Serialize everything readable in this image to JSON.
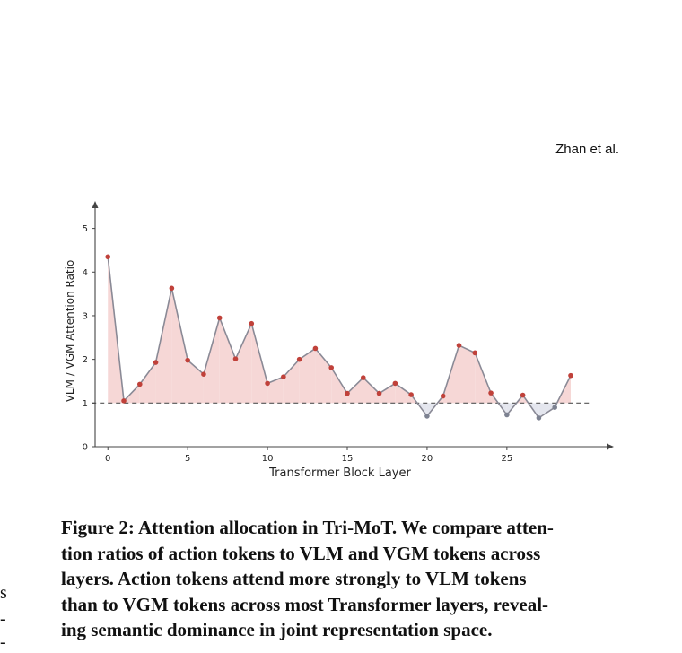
{
  "header": {
    "running_head": "Zhan et al."
  },
  "chart_data": {
    "type": "line",
    "xlabel": "Transformer Block Layer",
    "ylabel": "VLM / VGM Attention Ratio",
    "x": [
      0,
      1,
      2,
      3,
      4,
      5,
      6,
      7,
      8,
      9,
      10,
      11,
      12,
      13,
      14,
      15,
      16,
      17,
      18,
      19,
      20,
      21,
      22,
      23,
      24,
      25,
      26,
      27,
      28,
      29
    ],
    "values": [
      4.35,
      1.05,
      1.43,
      1.93,
      3.63,
      1.98,
      1.66,
      2.95,
      2.01,
      2.82,
      1.45,
      1.6,
      2.0,
      2.25,
      1.81,
      1.22,
      1.58,
      1.22,
      1.45,
      1.19,
      0.7,
      1.16,
      2.32,
      2.15,
      1.23,
      0.73,
      1.18,
      0.66,
      0.9,
      1.63
    ],
    "xlim": [
      -0.8,
      30.8
    ],
    "ylim": [
      0,
      5.3
    ],
    "xticks": [
      0,
      5,
      10,
      15,
      20,
      25
    ],
    "yticks": [
      0,
      1,
      2,
      3,
      4,
      5
    ],
    "reference_line": 1,
    "grid": false,
    "colors": {
      "line": "#8a8a96",
      "point_above": "#c0413a",
      "point_below": "#7d8291",
      "fill_above": "#f6d7d6",
      "fill_below": "#e4e6ee",
      "reference": "#555555",
      "axis": "#444444"
    }
  },
  "caption": {
    "lines": [
      "Figure 2: Attention allocation in Tri-MoT. We compare atten-",
      "tion ratios of action tokens to VLM and VGM tokens across",
      "layers. Action tokens attend more strongly to VLM tokens",
      "than to VGM tokens across most Transformer layers, reveal-",
      "ing semantic dominance in joint representation space."
    ]
  },
  "margin_fragments": [
    "s",
    "-",
    "-"
  ]
}
